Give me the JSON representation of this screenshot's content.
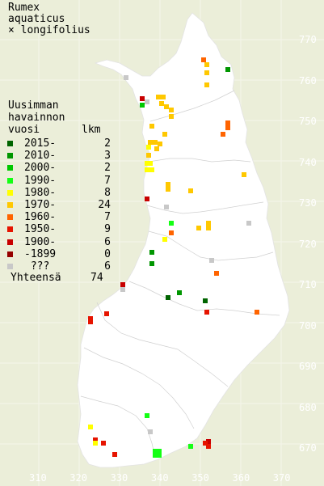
{
  "title_lines": [
    "Rumex",
    "aquaticus",
    "× longifolius"
  ],
  "legend": {
    "header_lines": [
      "Uusimman",
      "havainnon",
      "vuosi"
    ],
    "count_header": "lkm",
    "rows": [
      {
        "label": "2015-",
        "count": "2",
        "color": "#006400"
      },
      {
        "label": "2010-",
        "count": "3",
        "color": "#009600"
      },
      {
        "label": "2000-",
        "count": "2",
        "color": "#00c800"
      },
      {
        "label": "1990-",
        "count": "7",
        "color": "#14ff14"
      },
      {
        "label": "1980-",
        "count": "8",
        "color": "#ffff00"
      },
      {
        "label": "1970-",
        "count": "24",
        "color": "#ffc800"
      },
      {
        "label": "1960-",
        "count": "7",
        "color": "#ff6400"
      },
      {
        "label": "1950-",
        "count": "9",
        "color": "#e61400"
      },
      {
        "label": "1900-",
        "count": "6",
        "color": "#c80000"
      },
      {
        "label": "-1899",
        "count": "0",
        "color": "#960000"
      },
      {
        "label": " ???",
        "count": "6",
        "color": "#c8c8c8"
      }
    ],
    "total_label": "Yhteensä",
    "total_count": "74"
  },
  "axes": {
    "y_ticks": [
      "770",
      "760",
      "750",
      "740",
      "730",
      "720",
      "710",
      "700",
      "690",
      "680",
      "670"
    ],
    "x_ticks": [
      "310",
      "320",
      "330",
      "340",
      "350",
      "360",
      "370"
    ]
  },
  "colors": {
    "background": "#ebeed9",
    "land": "#ffffff",
    "borders": "#d7d7d7",
    "grid_labels": "#ffffff"
  }
}
